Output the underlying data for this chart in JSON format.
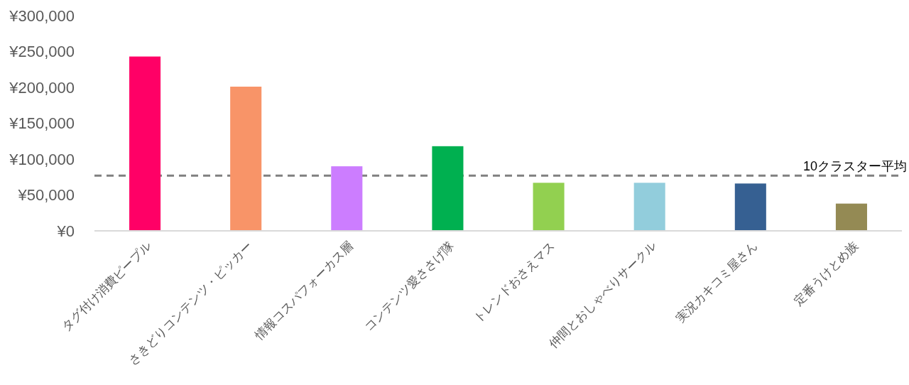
{
  "chart_data": {
    "type": "bar",
    "categories": [
      "タグ付け消費ピープル",
      "さきどりコンテンツ・ピッカー",
      "情報コスパフォーカス層",
      "コンテンツ愛ささげ隊",
      "トレンドおさえマス",
      "仲間とおしゃべりサークル",
      "実況カキコミ屋さん",
      "定番うけとめ族"
    ],
    "values": [
      243000,
      201000,
      90000,
      118000,
      67000,
      67000,
      66000,
      38000
    ],
    "colors": [
      "#ff0066",
      "#f89468",
      "#cc7dff",
      "#00b050",
      "#92d050",
      "#92cddc",
      "#366092",
      "#948a54"
    ],
    "ylim": [
      0,
      300000
    ],
    "yticks": [
      {
        "value": 0,
        "label": "¥0"
      },
      {
        "value": 50000,
        "label": "¥50,000"
      },
      {
        "value": 100000,
        "label": "¥100,000"
      },
      {
        "value": 150000,
        "label": "¥150,000"
      },
      {
        "value": 200000,
        "label": "¥200,000"
      },
      {
        "value": 250000,
        "label": "¥250,000"
      },
      {
        "value": 300000,
        "label": "¥300,000"
      }
    ],
    "ref_lines": [
      {
        "axis": "y",
        "value": 77000,
        "label": "10クラスター平均",
        "color": "#808080",
        "line_style": "dashed"
      }
    ],
    "grid": false
  }
}
